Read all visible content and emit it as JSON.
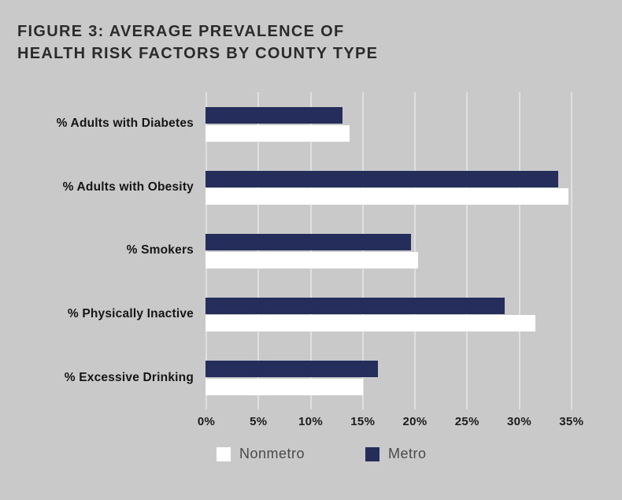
{
  "title": {
    "line1": "FIGURE 3: AVERAGE PREVALENCE OF",
    "line2": "HEALTH RISK FACTORS BY COUNTY TYPE"
  },
  "legend": [
    {
      "label": "Nonmetro",
      "color": "#ffffff"
    },
    {
      "label": "Metro",
      "color": "#252e5a"
    }
  ],
  "colors": {
    "background": "#c9c9c9",
    "gridline": "#e0e0e0",
    "metro_bar": "#252e5a",
    "nonmetro_bar": "#ffffff",
    "text": "#2b2b2b"
  },
  "chart_data": {
    "type": "bar",
    "orientation": "horizontal",
    "title": "FIGURE 3: AVERAGE PREVALENCE OF HEALTH RISK FACTORS BY COUNTY TYPE",
    "categories": [
      "% Adults with Diabetes",
      "% Adults with Obesity",
      "% Smokers",
      "% Physically Inactive",
      "% Excessive Drinking"
    ],
    "series": [
      {
        "name": "Metro",
        "color": "#252e5a",
        "values": [
          13.1,
          33.8,
          19.7,
          28.7,
          16.5
        ]
      },
      {
        "name": "Nonmetro",
        "color": "#ffffff",
        "values": [
          13.8,
          34.8,
          20.4,
          31.6,
          15.1
        ]
      }
    ],
    "xlim": [
      0,
      35
    ],
    "x_tick_labels": [
      "0%",
      "5%",
      "10%",
      "15%",
      "20%",
      "25%",
      "30%",
      "35%"
    ],
    "x_tick_step": 5,
    "grid": true,
    "legend_position": "bottom",
    "bar_order_in_group": [
      "Metro",
      "Nonmetro"
    ]
  }
}
